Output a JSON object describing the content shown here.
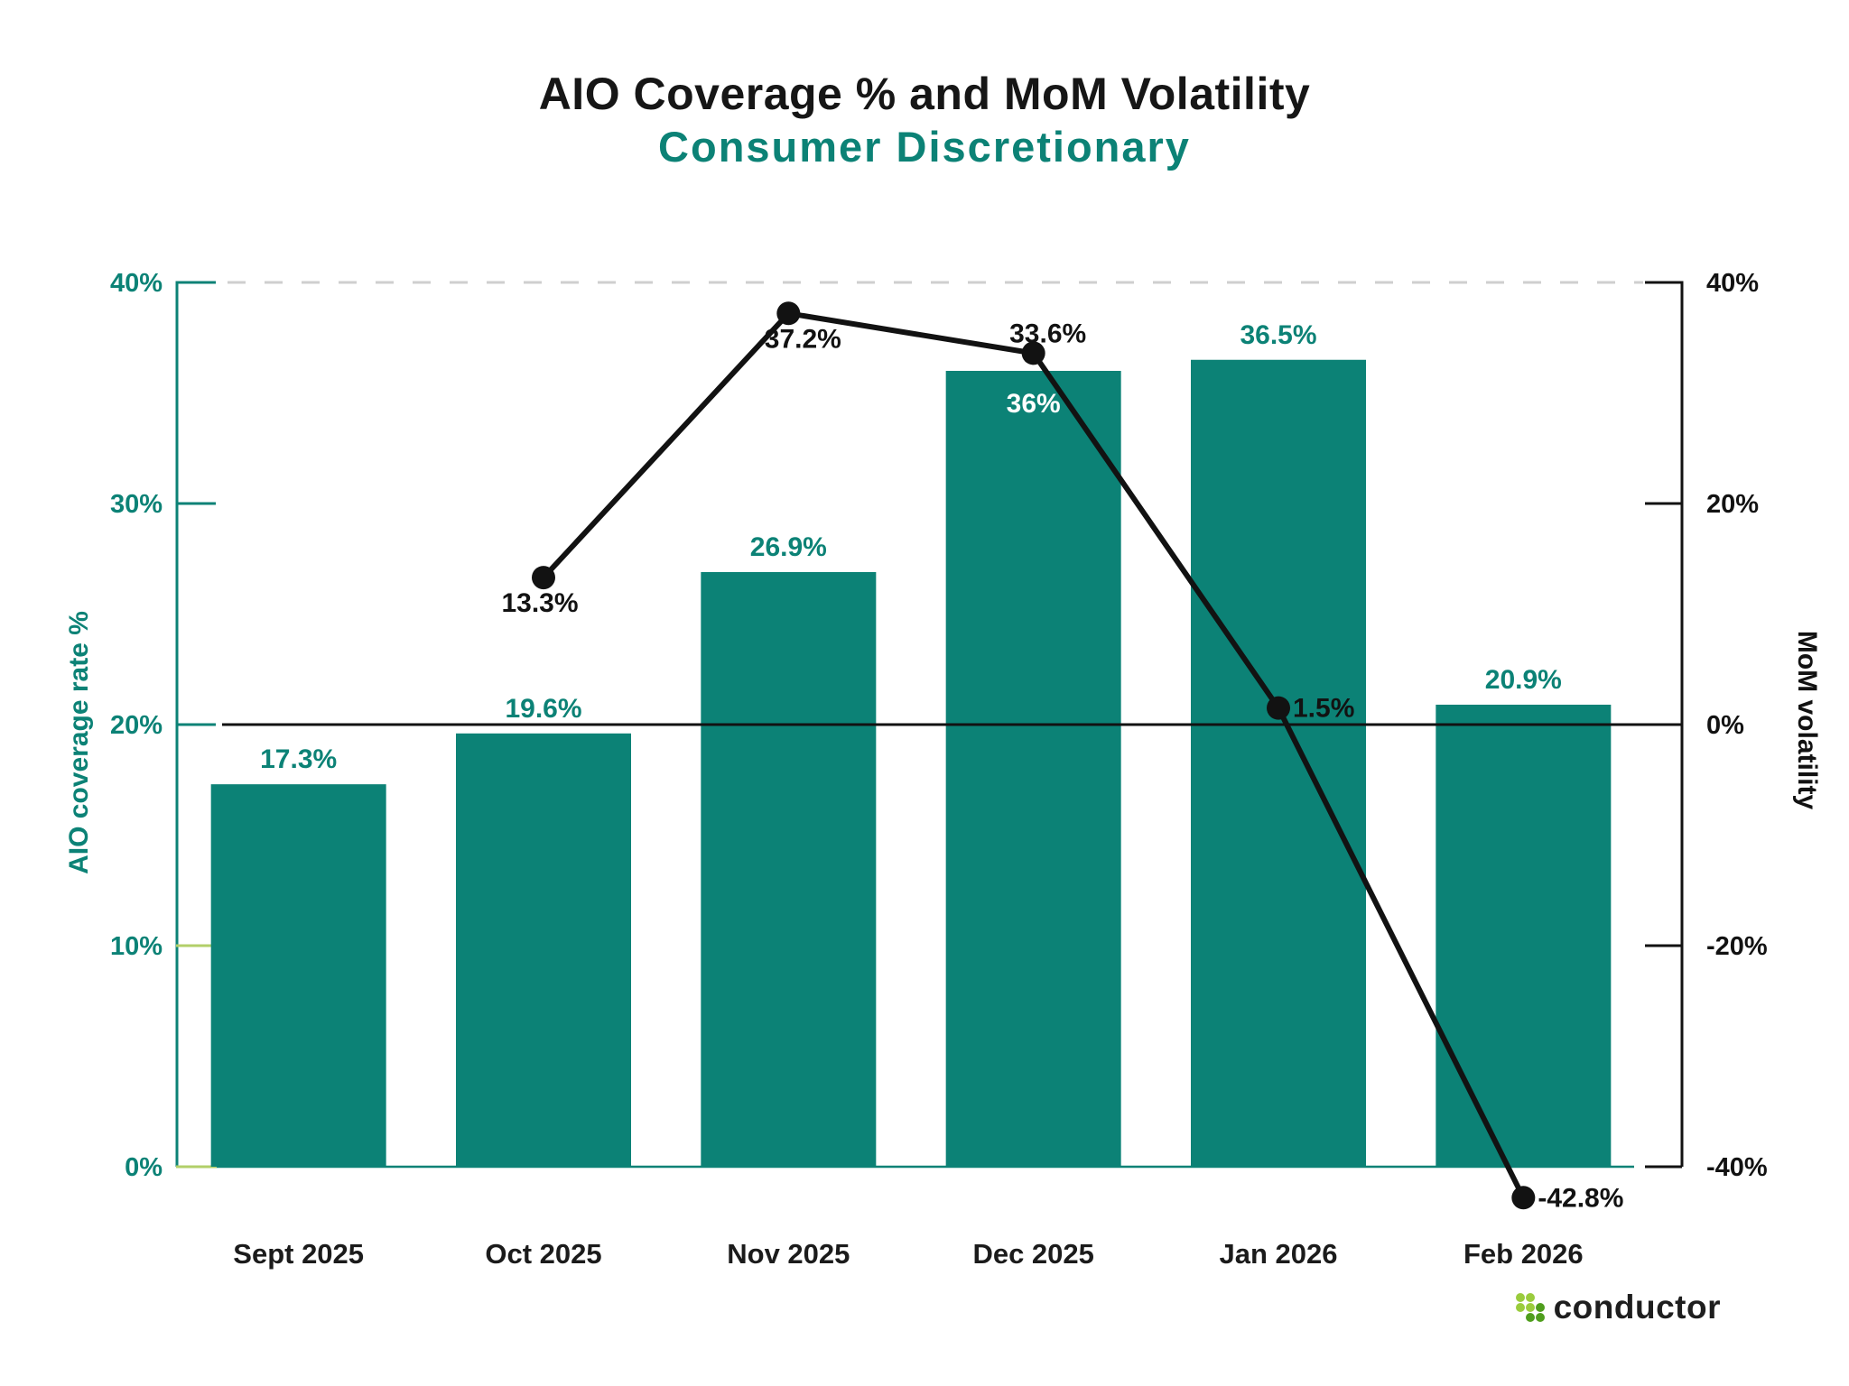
{
  "header": {
    "title": "AIO Coverage % and MoM Volatility",
    "subtitle": "Consumer Discretionary"
  },
  "colors": {
    "teal": "#0c8276",
    "light_green": "#b2cf69",
    "grid_dashed": "#cfcfcf",
    "ink": "#121212",
    "x_label": "#1b1b1b",
    "inside_label": "#ffffff"
  },
  "chart_data": {
    "type": "combo_bar_line",
    "title": "AIO Coverage % and MoM Volatility",
    "subtitle": "Consumer Discretionary",
    "categories": [
      "Sept 2025",
      "Oct 2025",
      "Nov 2025",
      "Dec 2025",
      "Jan 2026",
      "Feb 2026"
    ],
    "series": [
      {
        "name": "AIO coverage rate %",
        "type": "bar",
        "axis": "left",
        "color": "#0c8276",
        "values": [
          17.3,
          19.6,
          26.9,
          36,
          36.5,
          20.9
        ],
        "data_labels": [
          "17.3%",
          "19.6%",
          "26.9%",
          "36%",
          "36.5%",
          "20.9%"
        ],
        "label_placement": [
          "above",
          "above",
          "above",
          "inside",
          "above",
          "above"
        ]
      },
      {
        "name": "MoM volatility",
        "type": "line",
        "axis": "right",
        "color": "#121212",
        "values": [
          null,
          13.3,
          37.2,
          33.6,
          1.5,
          -42.8
        ],
        "data_labels": [
          null,
          "13.3%",
          "37.2%",
          "33.6%",
          "1.5%",
          "-42.8%"
        ],
        "label_placement": [
          null,
          "below",
          "below",
          "above",
          "right",
          "right"
        ]
      }
    ],
    "left_axis": {
      "title": "AIO coverage rate %",
      "range": [
        0,
        40
      ],
      "ticks": [
        {
          "value": 0,
          "label": "0%",
          "color": "#b2cf69"
        },
        {
          "value": 10,
          "label": "10%",
          "color": "#b2cf69"
        },
        {
          "value": 20,
          "label": "20%",
          "color": "#0c8276"
        },
        {
          "value": 30,
          "label": "30%",
          "color": "#0c8276"
        },
        {
          "value": 40,
          "label": "40%",
          "color": "#0c8276"
        }
      ]
    },
    "right_axis": {
      "title": "MoM volatility",
      "range": [
        -40,
        40
      ],
      "ticks": [
        {
          "value": 40,
          "label": "40%"
        },
        {
          "value": 20,
          "label": "20%"
        },
        {
          "value": 0,
          "label": "0%"
        },
        {
          "value": -20,
          "label": "-20%"
        },
        {
          "value": -40,
          "label": "-40%"
        }
      ]
    },
    "gridlines": {
      "top_dashed_at_left_value": 40,
      "zero_line_at_right_value": 0,
      "baseline_at_left_value": 0,
      "grid_on": false,
      "legend": "none"
    }
  },
  "branding": {
    "logo_text": "conductor",
    "logo_icon": "dot-grid-icon",
    "dot_colors": {
      "light": "#9acc3d",
      "dark": "#4f9e1d"
    },
    "dots": [
      [
        0,
        0,
        "light"
      ],
      [
        1,
        0,
        "light"
      ],
      [
        0,
        1,
        "light"
      ],
      [
        1,
        1,
        "light"
      ],
      [
        2,
        1,
        "dark"
      ],
      [
        1,
        2,
        "dark"
      ],
      [
        2,
        2,
        "dark"
      ]
    ]
  }
}
